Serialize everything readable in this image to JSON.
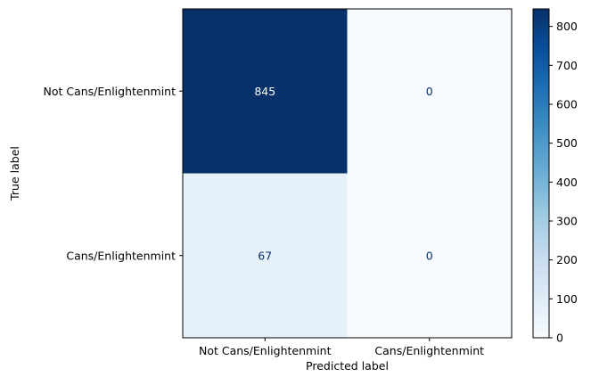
{
  "chart_data": {
    "type": "heatmap",
    "title": "",
    "xlabel": "Predicted label",
    "ylabel": "True label",
    "x_categories": [
      "Not Cans/Enlightenmint",
      "Cans/Enlightenmint"
    ],
    "y_categories": [
      "Not Cans/Enlightenmint",
      "Cans/Enlightenmint"
    ],
    "values": [
      [
        845,
        0
      ],
      [
        67,
        0
      ]
    ],
    "colormap": "Blues",
    "colormap_low": "#f7fbff",
    "colormap_high": "#08306b",
    "text_color_dark_cell": "#ffffff",
    "text_color_light_cell": "#08306b",
    "colorbar": {
      "range": [
        0,
        845
      ],
      "ticks": [
        0,
        100,
        200,
        300,
        400,
        500,
        600,
        700,
        800
      ]
    }
  }
}
